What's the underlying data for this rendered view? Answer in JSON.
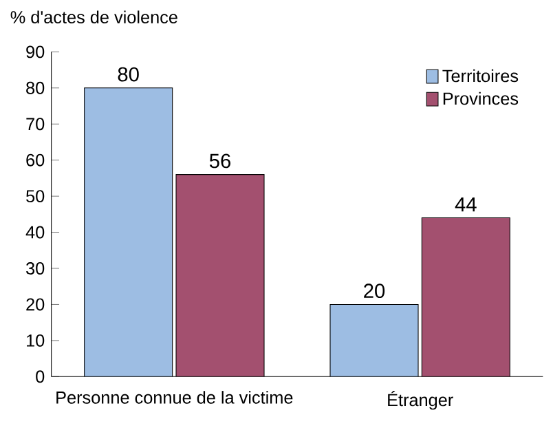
{
  "chart_data": {
    "type": "bar",
    "ylabel": "% d'actes de violence",
    "categories": [
      "Personne connue de la victime",
      "Étranger"
    ],
    "series": [
      {
        "name": "Territoires",
        "color": "#9dbde3",
        "values": [
          80,
          20
        ]
      },
      {
        "name": "Provinces",
        "color": "#a3506f",
        "values": [
          56,
          44
        ]
      }
    ],
    "ylim": [
      0,
      90
    ],
    "yticks": [
      0,
      10,
      20,
      30,
      40,
      50,
      60,
      70,
      80,
      90
    ],
    "data_labels": true,
    "legend": "top right",
    "grid": false
  }
}
